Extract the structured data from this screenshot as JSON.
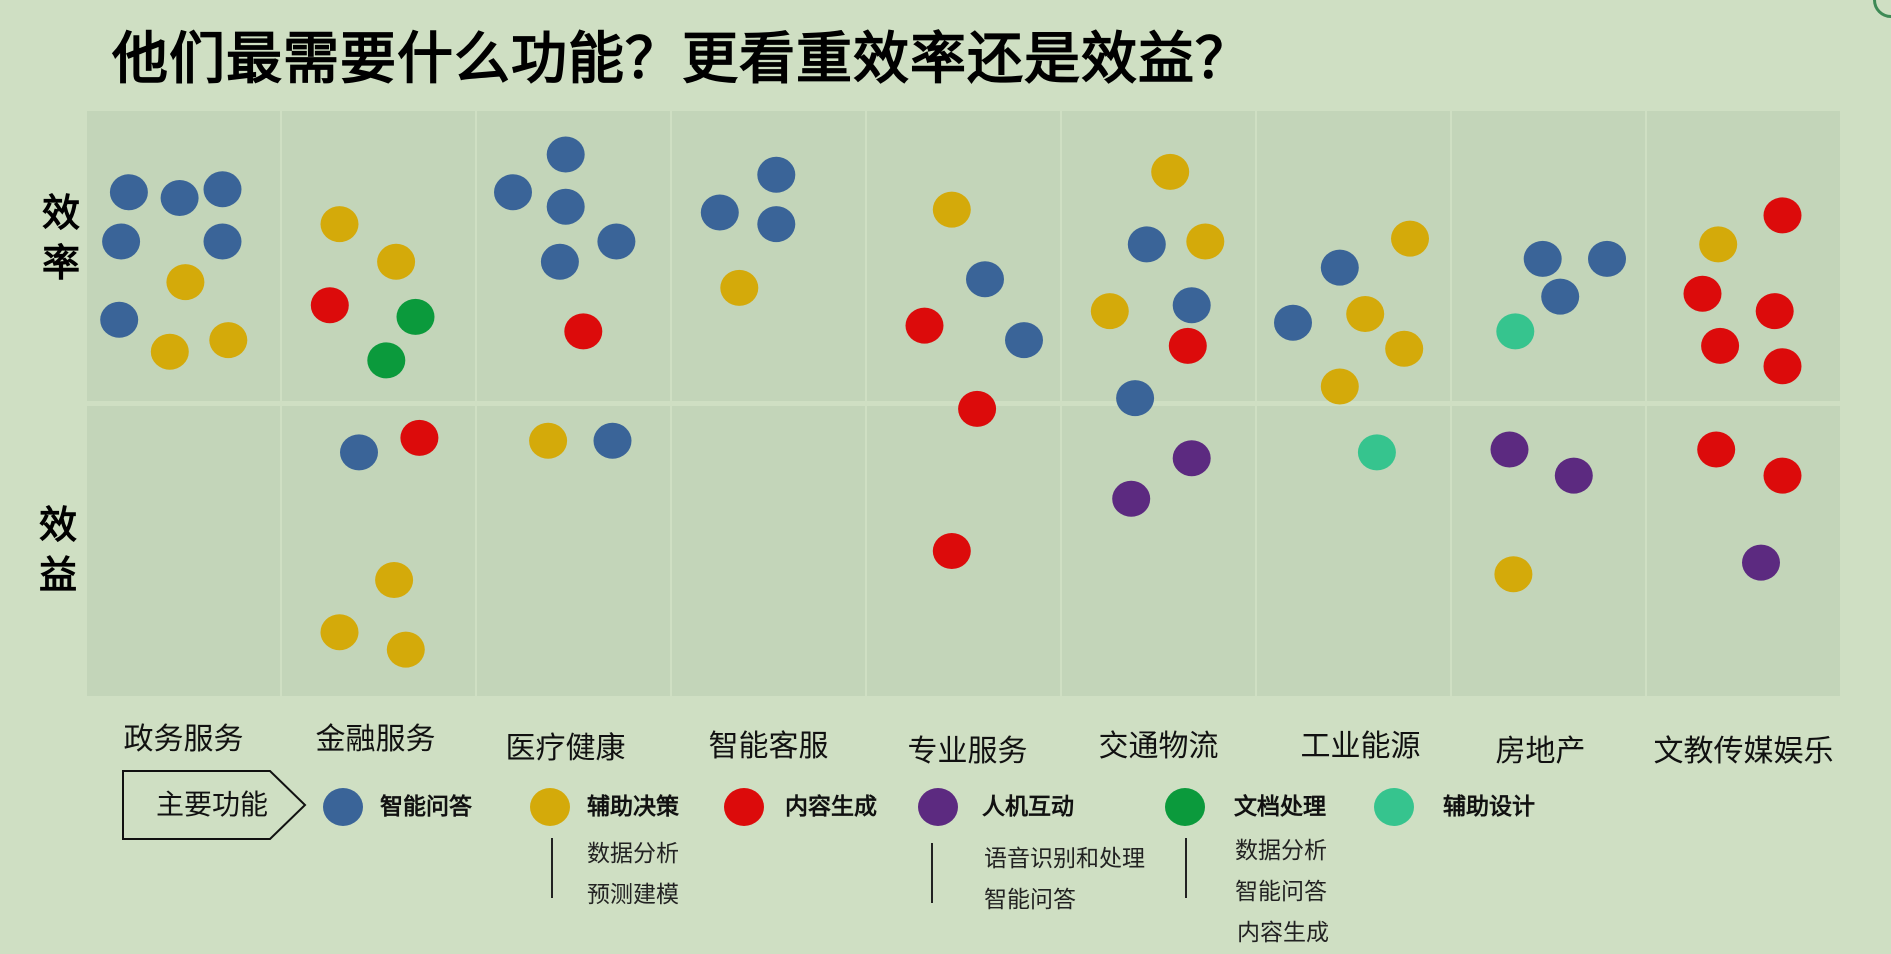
{
  "title": "他们最需要什么功能？更看重效率还是效益？",
  "colors": {
    "background": "#cfdfc3",
    "panel": "#c3d5b9",
    "divider": "#dbe7d2"
  },
  "chart_data": {
    "type": "scatter",
    "rows": [
      "效\n率",
      "效\n益"
    ],
    "categories": [
      "政务服务",
      "金融服务",
      "医疗健康",
      "智能客服",
      "专业服务",
      "交通物流",
      "工业能源",
      "房地产",
      "文教传媒娱乐"
    ],
    "functions": [
      {
        "key": "qa",
        "name": "智能问答",
        "color": "#3a6498"
      },
      {
        "key": "decision",
        "name": "辅助决策",
        "color": "#d4aa0a"
      },
      {
        "key": "content",
        "name": "内容生成",
        "color": "#dc0b0b"
      },
      {
        "key": "hci",
        "name": "人机互动",
        "color": "#5c2a80"
      },
      {
        "key": "doc",
        "name": "文档处理",
        "color": "#0b9a3c"
      },
      {
        "key": "design",
        "name": "辅助设计",
        "color": "#36c48e"
      }
    ],
    "points": [
      {
        "category": 0,
        "row": 0,
        "function": "qa",
        "x": 0.22,
        "y": 0.28
      },
      {
        "category": 0,
        "row": 0,
        "function": "qa",
        "x": 0.48,
        "y": 0.3
      },
      {
        "category": 0,
        "row": 0,
        "function": "qa",
        "x": 0.7,
        "y": 0.27
      },
      {
        "category": 0,
        "row": 0,
        "function": "qa",
        "x": 0.18,
        "y": 0.45
      },
      {
        "category": 0,
        "row": 0,
        "function": "qa",
        "x": 0.7,
        "y": 0.45
      },
      {
        "category": 0,
        "row": 0,
        "function": "decision",
        "x": 0.51,
        "y": 0.59
      },
      {
        "category": 0,
        "row": 0,
        "function": "qa",
        "x": 0.17,
        "y": 0.72
      },
      {
        "category": 0,
        "row": 0,
        "function": "decision",
        "x": 0.43,
        "y": 0.83
      },
      {
        "category": 0,
        "row": 0,
        "function": "decision",
        "x": 0.73,
        "y": 0.79
      },
      {
        "category": 1,
        "row": 0,
        "function": "decision",
        "x": 0.3,
        "y": 0.39
      },
      {
        "category": 1,
        "row": 0,
        "function": "decision",
        "x": 0.59,
        "y": 0.52
      },
      {
        "category": 1,
        "row": 0,
        "function": "content",
        "x": 0.25,
        "y": 0.67
      },
      {
        "category": 1,
        "row": 0,
        "function": "doc",
        "x": 0.69,
        "y": 0.71
      },
      {
        "category": 1,
        "row": 0,
        "function": "doc",
        "x": 0.54,
        "y": 0.86
      },
      {
        "category": 1,
        "row": 1,
        "function": "qa",
        "x": 0.4,
        "y": 0.16
      },
      {
        "category": 1,
        "row": 1,
        "function": "content",
        "x": 0.71,
        "y": 0.11
      },
      {
        "category": 1,
        "row": 1,
        "function": "decision",
        "x": 0.58,
        "y": 0.6
      },
      {
        "category": 1,
        "row": 1,
        "function": "decision",
        "x": 0.3,
        "y": 0.78
      },
      {
        "category": 1,
        "row": 1,
        "function": "decision",
        "x": 0.64,
        "y": 0.84
      },
      {
        "category": 2,
        "row": 0,
        "function": "qa",
        "x": 0.46,
        "y": 0.15
      },
      {
        "category": 2,
        "row": 0,
        "function": "qa",
        "x": 0.19,
        "y": 0.28
      },
      {
        "category": 2,
        "row": 0,
        "function": "qa",
        "x": 0.46,
        "y": 0.33
      },
      {
        "category": 2,
        "row": 0,
        "function": "qa",
        "x": 0.72,
        "y": 0.45
      },
      {
        "category": 2,
        "row": 0,
        "function": "qa",
        "x": 0.43,
        "y": 0.52
      },
      {
        "category": 2,
        "row": 0,
        "function": "content",
        "x": 0.55,
        "y": 0.76
      },
      {
        "category": 2,
        "row": 1,
        "function": "decision",
        "x": 0.37,
        "y": 0.12
      },
      {
        "category": 2,
        "row": 1,
        "function": "qa",
        "x": 0.7,
        "y": 0.12
      },
      {
        "category": 3,
        "row": 0,
        "function": "qa",
        "x": 0.54,
        "y": 0.22
      },
      {
        "category": 3,
        "row": 0,
        "function": "qa",
        "x": 0.25,
        "y": 0.35
      },
      {
        "category": 3,
        "row": 0,
        "function": "qa",
        "x": 0.54,
        "y": 0.39
      },
      {
        "category": 3,
        "row": 0,
        "function": "decision",
        "x": 0.35,
        "y": 0.61
      },
      {
        "category": 4,
        "row": 0,
        "function": "decision",
        "x": 0.44,
        "y": 0.34
      },
      {
        "category": 4,
        "row": 0,
        "function": "qa",
        "x": 0.61,
        "y": 0.58
      },
      {
        "category": 4,
        "row": 0,
        "function": "content",
        "x": 0.3,
        "y": 0.74
      },
      {
        "category": 4,
        "row": 0,
        "function": "qa",
        "x": 0.81,
        "y": 0.79
      },
      {
        "category": 4,
        "row": 1,
        "function": "content",
        "x": 0.57,
        "y": 0.01
      },
      {
        "category": 4,
        "row": 1,
        "function": "content",
        "x": 0.44,
        "y": 0.5
      },
      {
        "category": 5,
        "row": 0,
        "function": "decision",
        "x": 0.56,
        "y": 0.21
      },
      {
        "category": 5,
        "row": 0,
        "function": "qa",
        "x": 0.44,
        "y": 0.46
      },
      {
        "category": 5,
        "row": 0,
        "function": "decision",
        "x": 0.74,
        "y": 0.45
      },
      {
        "category": 5,
        "row": 0,
        "function": "qa",
        "x": 0.67,
        "y": 0.67
      },
      {
        "category": 5,
        "row": 0,
        "function": "decision",
        "x": 0.25,
        "y": 0.69
      },
      {
        "category": 5,
        "row": 0,
        "function": "content",
        "x": 0.65,
        "y": 0.81
      },
      {
        "category": 5,
        "row": 0,
        "function": "qa",
        "x": 0.38,
        "y": 0.99
      },
      {
        "category": 5,
        "row": 1,
        "function": "hci",
        "x": 0.67,
        "y": 0.18
      },
      {
        "category": 5,
        "row": 1,
        "function": "hci",
        "x": 0.36,
        "y": 0.32
      },
      {
        "category": 6,
        "row": 0,
        "function": "decision",
        "x": 0.79,
        "y": 0.44
      },
      {
        "category": 6,
        "row": 0,
        "function": "qa",
        "x": 0.43,
        "y": 0.54
      },
      {
        "category": 6,
        "row": 0,
        "function": "decision",
        "x": 0.56,
        "y": 0.7
      },
      {
        "category": 6,
        "row": 0,
        "function": "qa",
        "x": 0.19,
        "y": 0.73
      },
      {
        "category": 6,
        "row": 0,
        "function": "decision",
        "x": 0.76,
        "y": 0.82
      },
      {
        "category": 6,
        "row": 0,
        "function": "decision",
        "x": 0.43,
        "y": 0.95
      },
      {
        "category": 6,
        "row": 1,
        "function": "design",
        "x": 0.62,
        "y": 0.16
      },
      {
        "category": 7,
        "row": 0,
        "function": "qa",
        "x": 0.47,
        "y": 0.51
      },
      {
        "category": 7,
        "row": 0,
        "function": "qa",
        "x": 0.8,
        "y": 0.51
      },
      {
        "category": 7,
        "row": 0,
        "function": "qa",
        "x": 0.56,
        "y": 0.64
      },
      {
        "category": 7,
        "row": 0,
        "function": "design",
        "x": 0.33,
        "y": 0.76
      },
      {
        "category": 7,
        "row": 1,
        "function": "hci",
        "x": 0.3,
        "y": 0.15
      },
      {
        "category": 7,
        "row": 1,
        "function": "hci",
        "x": 0.63,
        "y": 0.24
      },
      {
        "category": 7,
        "row": 1,
        "function": "decision",
        "x": 0.32,
        "y": 0.58
      },
      {
        "category": 8,
        "row": 0,
        "function": "content",
        "x": 0.7,
        "y": 0.36
      },
      {
        "category": 8,
        "row": 0,
        "function": "decision",
        "x": 0.37,
        "y": 0.46
      },
      {
        "category": 8,
        "row": 0,
        "function": "content",
        "x": 0.29,
        "y": 0.63
      },
      {
        "category": 8,
        "row": 0,
        "function": "content",
        "x": 0.66,
        "y": 0.69
      },
      {
        "category": 8,
        "row": 0,
        "function": "content",
        "x": 0.38,
        "y": 0.81
      },
      {
        "category": 8,
        "row": 0,
        "function": "content",
        "x": 0.7,
        "y": 0.88
      },
      {
        "category": 8,
        "row": 1,
        "function": "content",
        "x": 0.36,
        "y": 0.15
      },
      {
        "category": 8,
        "row": 1,
        "function": "content",
        "x": 0.7,
        "y": 0.24
      },
      {
        "category": 8,
        "row": 1,
        "function": "hci",
        "x": 0.59,
        "y": 0.54
      }
    ]
  },
  "legend": {
    "title": "主要功能",
    "sub_items": {
      "decision": [
        "数据分析",
        "预测建模"
      ],
      "hci": [
        "语音识别和处理",
        "智能问答"
      ],
      "doc": [
        "数据分析",
        "智能问答",
        "内容生成"
      ]
    }
  }
}
